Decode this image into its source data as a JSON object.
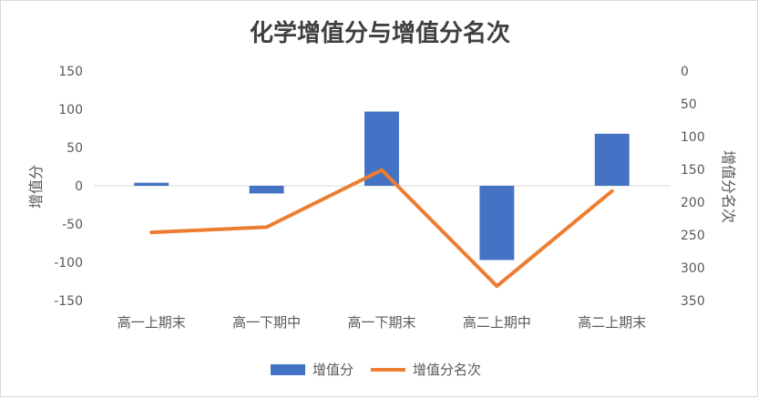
{
  "chart_data": {
    "type": "bar",
    "title": "化学增值分与增值分名次",
    "categories": [
      "高一上期末",
      "高一下期中",
      "高一下期末",
      "高二上期中",
      "高二上期末"
    ],
    "series": [
      {
        "name": "增值分",
        "type": "bar",
        "axis": "left",
        "color": "#4472C4",
        "values": [
          4,
          -10,
          97,
          -97,
          68
        ]
      },
      {
        "name": "增值分名次",
        "type": "line",
        "axis": "right",
        "color": "#ED7D31",
        "values": [
          246,
          238,
          151,
          328,
          183
        ]
      }
    ],
    "ylabel": "增值分",
    "y2label": "增值分名次",
    "ylim": [
      -150,
      150
    ],
    "yticks": [
      "150",
      "100",
      "50",
      "0",
      "-50",
      "-100",
      "-150"
    ],
    "y2lim": [
      0,
      350
    ],
    "y2_inverted": true,
    "y2ticks": [
      "0",
      "50",
      "100",
      "150",
      "200",
      "250",
      "300",
      "350"
    ],
    "legend_position": "bottom",
    "grid": false
  }
}
